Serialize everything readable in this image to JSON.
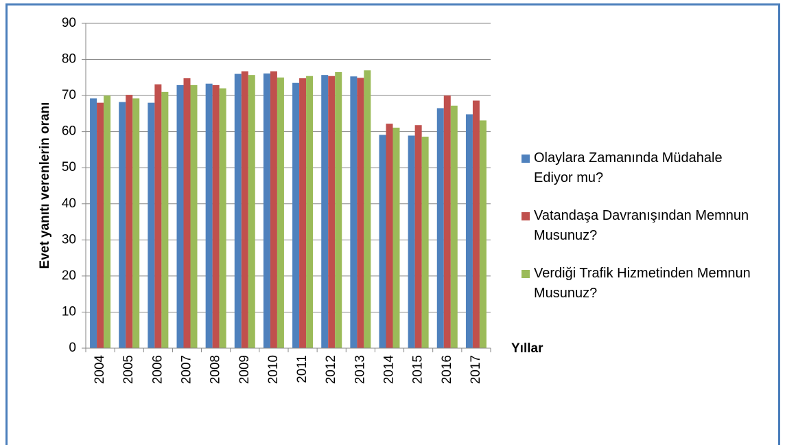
{
  "chart_data": {
    "type": "bar",
    "x_label": "Yıllar",
    "y_label": "Evet yanıtı verenlerin oranı",
    "categories": [
      "2004",
      "2005",
      "2006",
      "2007",
      "2008",
      "2009",
      "2010",
      "2011",
      "2012",
      "2013",
      "2014",
      "2015",
      "2016",
      "2017"
    ],
    "series": [
      {
        "name": "Olaylara Zamanında Müdahale Ediyor mu?",
        "color": "#4f81bd",
        "values": [
          69.2,
          68.2,
          68,
          72.9,
          73.3,
          76,
          76.1,
          73.5,
          75.7,
          75.3,
          59.1,
          58.9,
          66.5,
          64.8
        ]
      },
      {
        "name": "Vatandaşa Davranışından Memnun Musunuz?",
        "color": "#c0504d",
        "values": [
          68,
          70.2,
          73.1,
          74.8,
          72.9,
          76.7,
          76.7,
          74.8,
          75.4,
          74.9,
          62.2,
          61.8,
          70,
          68.6
        ]
      },
      {
        "name": "Verdiği Trafik Hizmetinden Memnun Musunuz?",
        "color": "#9bbb59",
        "values": [
          70,
          69.2,
          71,
          72.9,
          72,
          75.7,
          75,
          75.4,
          76.5,
          77,
          61.1,
          58.6,
          67.2,
          63.1
        ]
      }
    ],
    "ylim": [
      0,
      90
    ],
    "yticks": [
      0,
      10,
      20,
      30,
      40,
      50,
      60,
      70,
      80,
      90
    ],
    "grid": true,
    "legend": "right"
  }
}
